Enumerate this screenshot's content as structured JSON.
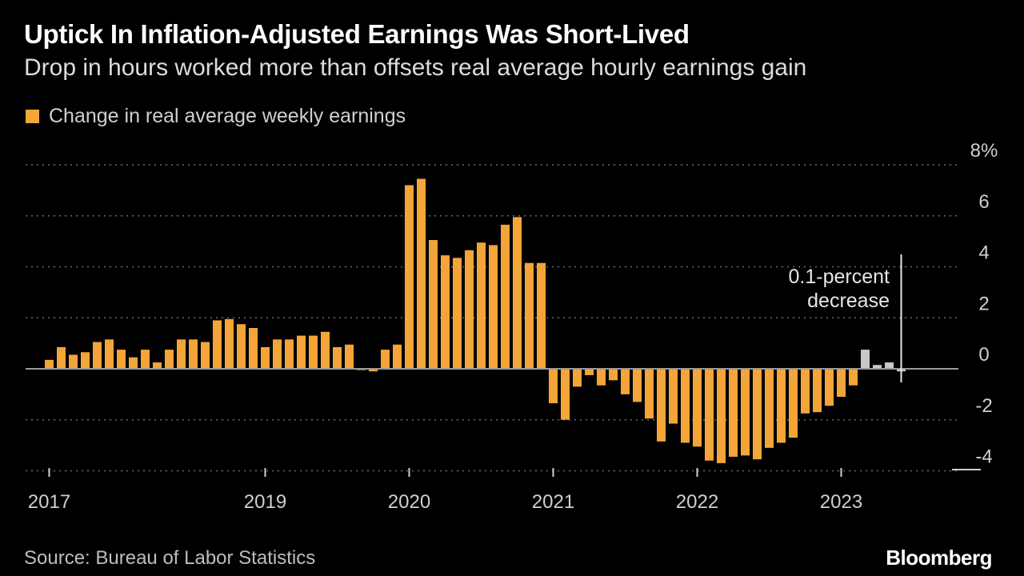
{
  "title": "Uptick In Inflation-Adjusted Earnings Was Short-Lived",
  "subtitle": "Drop in hours worked more than offsets real average hourly earnings gain",
  "source": "Source: Bureau of Labor Statistics",
  "brand": "Bloomberg",
  "colors": {
    "bar": "#f4a53a",
    "recent": "#c8c8c8",
    "grid": "#6a6a6a",
    "axis": "#9a9a9a",
    "annotation_line": "#e6e6e6"
  },
  "chart_data": {
    "type": "bar",
    "legend": [
      "Change in real average weekly earnings"
    ],
    "ylabel": "",
    "ylim": [
      -4.5,
      8
    ],
    "y_ticks": [
      8,
      6,
      4,
      2,
      0,
      -2,
      -4
    ],
    "y_tick_labels": [
      "8%",
      "6",
      "4",
      "2",
      "0",
      "-2",
      "-4"
    ],
    "x_tick_labels": [
      {
        "label": "2017",
        "month_index": 0
      },
      {
        "label": "2019",
        "month_index": 18
      },
      {
        "label": "2020",
        "month_index": 30
      },
      {
        "label": "2021",
        "month_index": 42
      },
      {
        "label": "2022",
        "month_index": 54
      },
      {
        "label": "2023",
        "month_index": 66
      }
    ],
    "series": [
      {
        "name": "Change in real average weekly earnings",
        "values": [
          0.35,
          0.85,
          0.55,
          0.65,
          1.05,
          1.15,
          0.75,
          0.45,
          0.75,
          0.25,
          0.75,
          1.15,
          1.15,
          1.05,
          1.9,
          1.95,
          1.75,
          1.6,
          0.85,
          1.15,
          1.15,
          1.3,
          1.3,
          1.45,
          0.85,
          0.95,
          -0.05,
          -0.1,
          0.75,
          0.95,
          7.2,
          7.45,
          5.05,
          4.45,
          4.35,
          4.65,
          4.95,
          4.85,
          5.65,
          5.95,
          4.15,
          4.15,
          -1.35,
          -2.0,
          -0.7,
          -0.25,
          -0.65,
          -0.45,
          -1.0,
          -1.3,
          -1.95,
          -2.85,
          -2.15,
          -2.9,
          -3.05,
          -3.6,
          -3.7,
          -3.45,
          -3.4,
          -3.55,
          -3.1,
          -2.9,
          -2.7,
          -1.75,
          -1.7,
          -1.45,
          -1.1,
          -0.65
        ]
      },
      {
        "name": "Recent (gray)",
        "values": [
          0.75,
          0.15,
          0.25,
          -0.1
        ]
      }
    ]
  },
  "annotation": {
    "lines": [
      "0.1-percent",
      "decrease"
    ]
  }
}
